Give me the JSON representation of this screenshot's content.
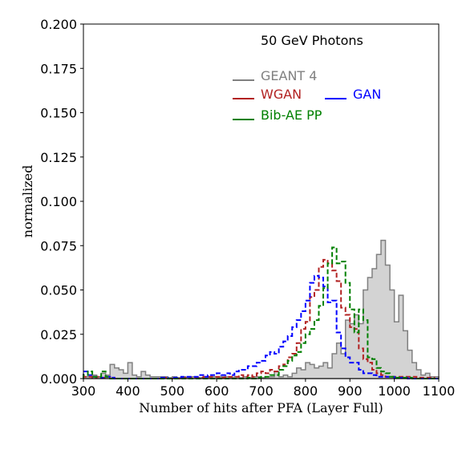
{
  "chart_data": {
    "type": "histogram",
    "title": "",
    "annotation": "50 GeV Photons",
    "xlabel": "Number of hits after PFA (Layer Full)",
    "ylabel": "normalized",
    "xlim": [
      300,
      1100
    ],
    "ylim": [
      0,
      0.2
    ],
    "xticks": [
      "300",
      "400",
      "500",
      "600",
      "700",
      "800",
      "900",
      "1000",
      "1100"
    ],
    "yticks": [
      "0.000",
      "0.025",
      "0.050",
      "0.075",
      "0.100",
      "0.125",
      "0.150",
      "0.175",
      "0.200"
    ],
    "bin_width": 10,
    "legend": [
      {
        "key": "geant4",
        "label": "GEANT 4",
        "color": "#808080",
        "row": 0,
        "col": 0
      },
      {
        "key": "wgan",
        "label": "WGAN",
        "color": "#b22222",
        "row": 1,
        "col": 0
      },
      {
        "key": "gan",
        "label": "GAN",
        "color": "#0000ff",
        "row": 1,
        "col": 1
      },
      {
        "key": "bibae",
        "label": "Bib-AE PP",
        "color": "#008000",
        "row": 2,
        "col": 0
      }
    ],
    "series": [
      {
        "key": "geant4",
        "style": "filled-step",
        "color": "#808080",
        "fill": "#d3d3d3",
        "x_start": 300,
        "values": [
          0.001,
          0.001,
          0.002,
          0.001,
          0.003,
          0.002,
          0.008,
          0.006,
          0.005,
          0.003,
          0.009,
          0.002,
          0.001,
          0.004,
          0.002,
          0.001,
          0.001,
          0.001,
          0.001,
          0.0005,
          0.001,
          0.0005,
          0.001,
          0.0005,
          0.001,
          0.0005,
          0.0005,
          0.001,
          0.0005,
          0.001,
          0.0005,
          0.001,
          0.001,
          0.0005,
          0.001,
          0.0005,
          0.001,
          0.0005,
          0.001,
          0.001,
          0.0005,
          0.001,
          0.001,
          0.004,
          0.001,
          0.002,
          0.001,
          0.003,
          0.006,
          0.005,
          0.009,
          0.008,
          0.006,
          0.007,
          0.009,
          0.006,
          0.014,
          0.02,
          0.014,
          0.033,
          0.031,
          0.036,
          0.031,
          0.05,
          0.057,
          0.062,
          0.07,
          0.078,
          0.064,
          0.05,
          0.032,
          0.047,
          0.027,
          0.016,
          0.009,
          0.005,
          0.002,
          0.003,
          0.001,
          0.001
        ]
      },
      {
        "key": "wgan",
        "style": "dashed-step",
        "color": "#b22222",
        "x_start": 300,
        "values": [
          0.001,
          0.001,
          0.0005,
          0.001,
          0.0005,
          0.001,
          0.0005,
          0,
          0,
          0,
          0,
          0,
          0,
          0,
          0,
          0,
          0,
          0,
          0.0005,
          0,
          0,
          0,
          0.0005,
          0,
          0.0005,
          0.0005,
          0.0005,
          0.001,
          0.001,
          0.001,
          0.001,
          0.0005,
          0.001,
          0.001,
          0.001,
          0.002,
          0.001,
          0.002,
          0.001,
          0.003,
          0.004,
          0.003,
          0.005,
          0.004,
          0.007,
          0.008,
          0.012,
          0.014,
          0.02,
          0.028,
          0.032,
          0.046,
          0.05,
          0.063,
          0.067,
          0.065,
          0.061,
          0.055,
          0.04,
          0.036,
          0.029,
          0.028,
          0.017,
          0.011,
          0.009,
          0.005,
          0.003,
          0.002,
          0.001,
          0.001,
          0.001,
          0.001,
          0.001,
          0.001,
          0.001,
          0.0005,
          0.0005,
          0.0005,
          0.0005,
          0
        ]
      },
      {
        "key": "gan",
        "style": "dashed-step",
        "color": "#0000ff",
        "x_start": 300,
        "values": [
          0.004,
          0.002,
          0.001,
          0.001,
          0.0005,
          0.001,
          0.0005,
          0,
          0,
          0,
          0,
          0,
          0,
          0,
          0,
          0,
          0,
          0.0005,
          0.0005,
          0,
          0.0005,
          0.0005,
          0.001,
          0.001,
          0.001,
          0.001,
          0.002,
          0.001,
          0.002,
          0.002,
          0.003,
          0.002,
          0.003,
          0.002,
          0.004,
          0.005,
          0.005,
          0.007,
          0.007,
          0.009,
          0.01,
          0.013,
          0.015,
          0.014,
          0.018,
          0.021,
          0.024,
          0.029,
          0.033,
          0.038,
          0.044,
          0.054,
          0.058,
          0.057,
          0.052,
          0.043,
          0.044,
          0.026,
          0.017,
          0.012,
          0.009,
          0.009,
          0.005,
          0.003,
          0.003,
          0.002,
          0.001,
          0.001,
          0.001,
          0.001,
          0.0005,
          0.0005,
          0.0005,
          0,
          0,
          0,
          0,
          0,
          0,
          0
        ]
      },
      {
        "key": "bibae",
        "style": "dashed-step",
        "color": "#008000",
        "x_start": 300,
        "values": [
          0.002,
          0.004,
          0.001,
          0.001,
          0.004,
          0.001,
          0,
          0,
          0,
          0,
          0,
          0,
          0,
          0,
          0,
          0,
          0,
          0,
          0,
          0,
          0,
          0,
          0,
          0,
          0,
          0,
          0,
          0,
          0,
          0,
          0,
          0,
          0,
          0,
          0,
          0,
          0,
          0.0005,
          0,
          0.0005,
          0.001,
          0.001,
          0.002,
          0.002,
          0.005,
          0.007,
          0.01,
          0.013,
          0.015,
          0.02,
          0.025,
          0.028,
          0.033,
          0.041,
          0.051,
          0.065,
          0.074,
          0.065,
          0.066,
          0.054,
          0.039,
          0.026,
          0.039,
          0.033,
          0.012,
          0.011,
          0.006,
          0.004,
          0.003,
          0.001,
          0.0005,
          0.0005,
          0.0005,
          0.0005,
          0,
          0,
          0,
          0,
          0,
          0
        ]
      }
    ]
  }
}
